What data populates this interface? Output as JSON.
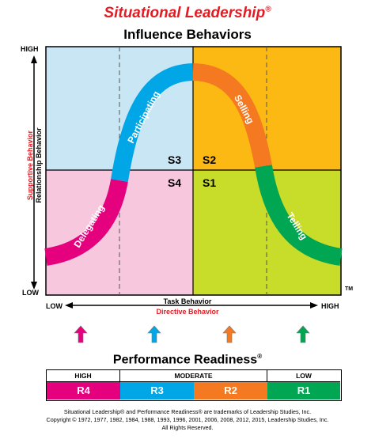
{
  "header": {
    "title": "Situational Leadership",
    "title_mark": "®",
    "subtitle": "Influence Behaviors"
  },
  "left_axis": {
    "high": "HIGH",
    "low": "LOW",
    "label_red": "Supportive Behavior",
    "label_black": "Relationship Behavior"
  },
  "bottom_axis": {
    "low": "LOW",
    "high": "HIGH",
    "label_black": "Task Behavior",
    "label_red": "Directive Behavior"
  },
  "tm": "TM",
  "quadrants": [
    {
      "id": "S3",
      "color": "#c9e6f5"
    },
    {
      "id": "S2",
      "color": "#fdb913"
    },
    {
      "id": "S4",
      "color": "#f7c7de"
    },
    {
      "id": "S1",
      "color": "#c8dc2a"
    }
  ],
  "curve_segments": [
    {
      "label": "Delegating",
      "color": "#e5007e"
    },
    {
      "label": "Participating",
      "color": "#00a6e6"
    },
    {
      "label": "Selling",
      "color": "#f47920"
    },
    {
      "label": "Telling",
      "color": "#00a651"
    }
  ],
  "arrows": [
    {
      "name": "pink-arrow-icon",
      "color": "#e5007e"
    },
    {
      "name": "blue-arrow-icon",
      "color": "#00a6e6"
    },
    {
      "name": "orange-arrow-icon",
      "color": "#f47920"
    },
    {
      "name": "green-arrow-icon",
      "color": "#00a651"
    }
  ],
  "readiness": {
    "title": "Performance Readiness",
    "title_mark": "®",
    "levels": [
      "HIGH",
      "MODERATE",
      "LOW"
    ],
    "cells": [
      {
        "label": "R4",
        "color": "#e5007e"
      },
      {
        "label": "R3",
        "color": "#00a6e6"
      },
      {
        "label": "R2",
        "color": "#f47920"
      },
      {
        "label": "R1",
        "color": "#00a651"
      }
    ]
  },
  "footer": {
    "line1": "Situational Leadership® and Performance Readiness® are trademarks of Leadership Studies, Inc.",
    "line2": "Copyright © 1972, 1977, 1982, 1984, 1988, 1993, 1996, 2001, 2006, 2008, 2012, 2015, Leadership Studies, Inc.",
    "line3": "All Rights Reserved."
  }
}
